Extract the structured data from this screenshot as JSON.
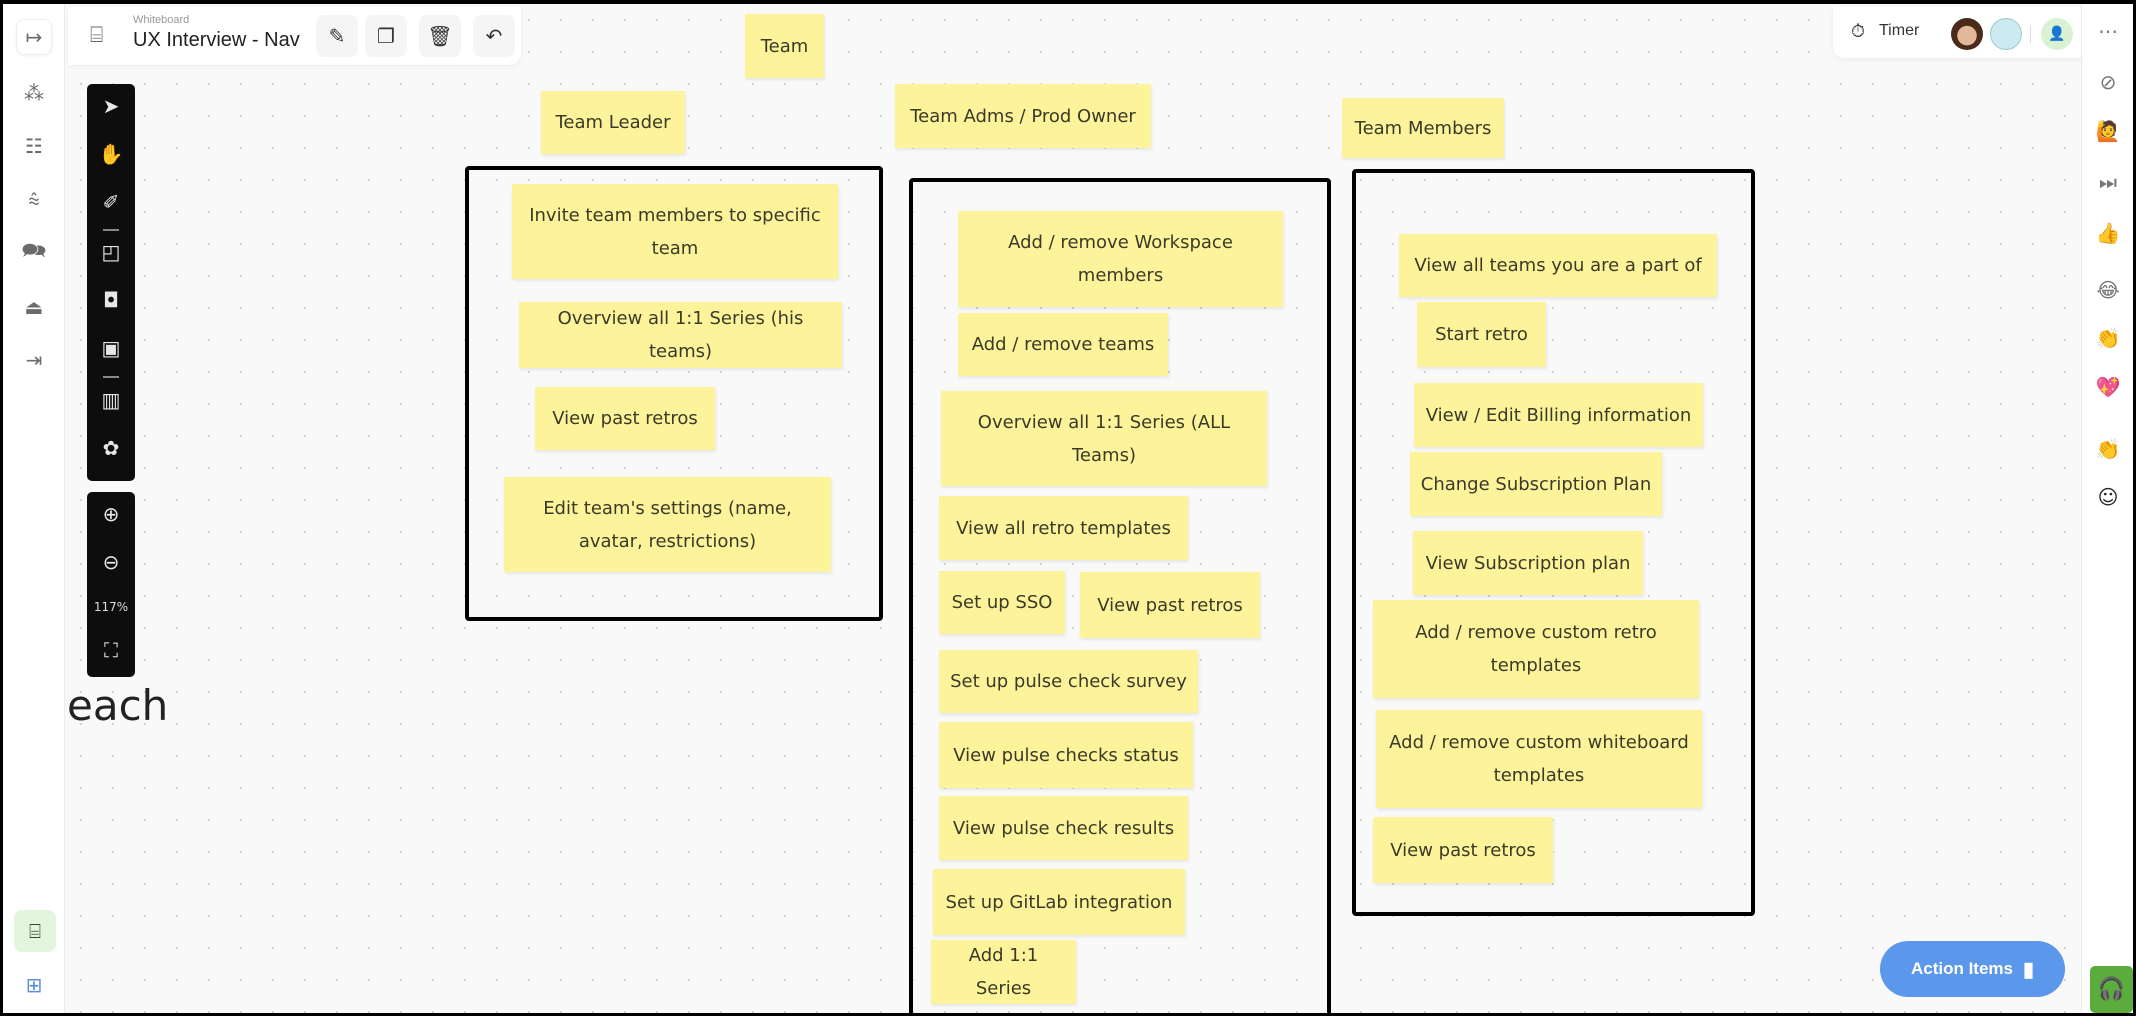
{
  "header": {
    "subtitle": "Whiteboard",
    "title": "UX Interview - Nav"
  },
  "topbar": {
    "timer_label": "Timer"
  },
  "zoom": {
    "level": "117%"
  },
  "canvas_fragment_text": "each",
  "headers": {
    "team": "Team",
    "team_leader": "Team Leader",
    "team_admins": "Team Adms / Prod Owner",
    "team_members": "Team Members"
  },
  "team_leader_stickies": [
    "Invite team members to specific team",
    "Overview all 1:1 Series (his teams)",
    "View past retros",
    "Edit team's settings (name, avatar, restrictions)"
  ],
  "admin_stickies": [
    "Add / remove Workspace members",
    "Add / remove teams",
    "Overview all 1:1 Series (ALL Teams)",
    "View all retro templates",
    "Set up SSO",
    "View past retros",
    "Set up pulse check survey",
    "View pulse checks status",
    "View pulse check results",
    "Set up GitLab integration",
    "Add 1:1 Series"
  ],
  "member_stickies": [
    "View all teams you are a part of",
    "Start retro",
    "View / Edit Billing information",
    "Change Subscription Plan",
    "View Subscription plan",
    "Add / remove custom retro templates",
    "Add / remove custom whiteboard templates",
    "View past retros"
  ],
  "action_items_label": "Action Items",
  "colors": {
    "sticky": "#fcf39b",
    "action_button": "#5b97ea",
    "support_button": "#5aac3c",
    "active_nav": "#e3f5dc"
  }
}
